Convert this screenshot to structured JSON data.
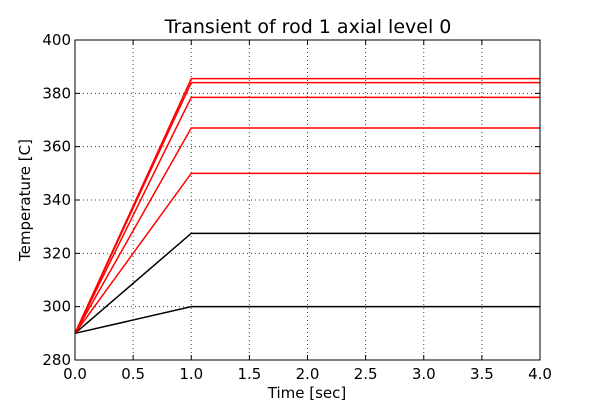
{
  "chart_data": {
    "type": "line",
    "title": "Transient of rod 1 axial level 0",
    "xlabel": "Time [sec]",
    "ylabel": "Temperature [C]",
    "xlim": [
      0.0,
      4.0
    ],
    "ylim": [
      280,
      400
    ],
    "xticks": [
      "0.0",
      "0.5",
      "1.0",
      "1.5",
      "2.0",
      "2.5",
      "3.0",
      "3.5",
      "4.0"
    ],
    "yticks": [
      "280",
      "300",
      "320",
      "340",
      "360",
      "380",
      "400"
    ],
    "grid": true,
    "legend": "none",
    "series": [
      {
        "color": "#000000",
        "x": [
          0.0,
          1.0,
          4.0
        ],
        "y": [
          290,
          300,
          300
        ]
      },
      {
        "color": "#000000",
        "x": [
          0.0,
          1.0,
          4.0
        ],
        "y": [
          290,
          327.5,
          327.5
        ]
      },
      {
        "color": "#ff0000",
        "x": [
          0.0,
          1.0,
          4.0
        ],
        "y": [
          290,
          350,
          350
        ]
      },
      {
        "color": "#ff0000",
        "x": [
          0.0,
          1.0,
          4.0
        ],
        "y": [
          290,
          367,
          367
        ]
      },
      {
        "color": "#ff0000",
        "x": [
          0.0,
          1.0,
          4.0
        ],
        "y": [
          290,
          378.5,
          378.5
        ]
      },
      {
        "color": "#ff0000",
        "x": [
          0.0,
          1.0,
          4.0
        ],
        "y": [
          290,
          384,
          384
        ]
      },
      {
        "color": "#ff0000",
        "x": [
          0.0,
          1.0,
          4.0
        ],
        "y": [
          290,
          385.5,
          385.5
        ]
      }
    ]
  }
}
